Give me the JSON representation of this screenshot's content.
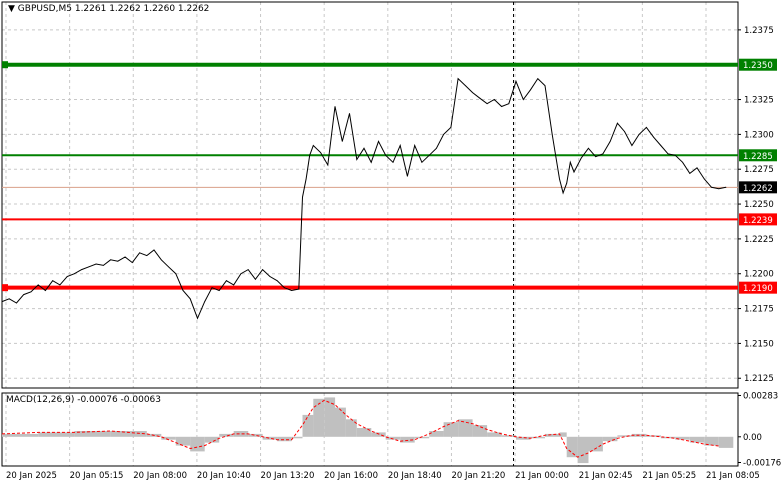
{
  "header": {
    "symbol": "GBPUSD,M5",
    "ohlc": "1.2261 1.2262 1.2260 1.2262"
  },
  "macd_panel": {
    "label": "MACD(12,26,9) -0.00076 -0.00063"
  },
  "colors": {
    "price_line": "#000000",
    "green_level": "#008000",
    "red_level": "#ff0000",
    "current_price_line": "#d9a08a",
    "histogram": "#c0c0c0",
    "signal": "#ff0000",
    "grid": "#c8c8c8"
  },
  "chart_data": [
    {
      "type": "line",
      "name": "price",
      "ylim": [
        1.2118,
        1.2395
      ],
      "yticks": [
        "1.2375",
        "1.2325",
        "1.2300",
        "1.2275",
        "1.2250",
        "1.2225",
        "1.2200",
        "1.2175",
        "1.2150",
        "1.2125"
      ],
      "xticks": [
        "20 Jan 2025",
        "20 Jan 05:15",
        "20 Jan 08:00",
        "20 Jan 10:40",
        "20 Jan 13:20",
        "20 Jan 16:00",
        "20 Jan 18:40",
        "20 Jan 21:20",
        "21 Jan 00:00",
        "21 Jan 02:45",
        "21 Jan 05:25",
        "21 Jan 08:05"
      ],
      "x": [
        0,
        0.01,
        0.02,
        0.03,
        0.04,
        0.05,
        0.06,
        0.07,
        0.08,
        0.09,
        0.1,
        0.11,
        0.12,
        0.13,
        0.14,
        0.15,
        0.16,
        0.17,
        0.18,
        0.19,
        0.2,
        0.21,
        0.22,
        0.23,
        0.24,
        0.25,
        0.26,
        0.27,
        0.28,
        0.29,
        0.3,
        0.31,
        0.32,
        0.33,
        0.34,
        0.35,
        0.36,
        0.37,
        0.38,
        0.39,
        0.4,
        0.41,
        0.415,
        0.42,
        0.425,
        0.43,
        0.44,
        0.45,
        0.46,
        0.47,
        0.48,
        0.49,
        0.5,
        0.51,
        0.52,
        0.53,
        0.54,
        0.55,
        0.56,
        0.57,
        0.58,
        0.59,
        0.6,
        0.61,
        0.62,
        0.63,
        0.64,
        0.65,
        0.66,
        0.67,
        0.68,
        0.69,
        0.7,
        0.71,
        0.72,
        0.73,
        0.74,
        0.75,
        0.76,
        0.77,
        0.775,
        0.78,
        0.785,
        0.79,
        0.8,
        0.81,
        0.82,
        0.83,
        0.84,
        0.85,
        0.86,
        0.87,
        0.88,
        0.89,
        0.9,
        0.91,
        0.92,
        0.93,
        0.94,
        0.95,
        0.96,
        0.97,
        0.98,
        0.99,
        1.0
      ],
      "values": [
        1.218,
        1.2182,
        1.2179,
        1.2185,
        1.2187,
        1.2192,
        1.2188,
        1.2195,
        1.2192,
        1.2198,
        1.22,
        1.2203,
        1.2205,
        1.2207,
        1.2206,
        1.221,
        1.2209,
        1.2212,
        1.2208,
        1.2215,
        1.2213,
        1.2217,
        1.221,
        1.2205,
        1.22,
        1.2188,
        1.2182,
        1.2168,
        1.218,
        1.219,
        1.2188,
        1.2195,
        1.2192,
        1.22,
        1.2203,
        1.2196,
        1.2203,
        1.2198,
        1.2195,
        1.219,
        1.2188,
        1.2189,
        1.2255,
        1.2268,
        1.2285,
        1.2292,
        1.2287,
        1.2278,
        1.232,
        1.2295,
        1.2315,
        1.2282,
        1.229,
        1.228,
        1.2295,
        1.2285,
        1.228,
        1.2292,
        1.227,
        1.2292,
        1.228,
        1.2285,
        1.229,
        1.23,
        1.2305,
        1.234,
        1.2335,
        1.233,
        1.2326,
        1.2322,
        1.2325,
        1.232,
        1.2322,
        1.2338,
        1.2325,
        1.2332,
        1.234,
        1.2335,
        1.23,
        1.2268,
        1.2258,
        1.2265,
        1.228,
        1.2273,
        1.2283,
        1.229,
        1.2284,
        1.2286,
        1.2295,
        1.2308,
        1.2302,
        1.2292,
        1.23,
        1.2305,
        1.2298,
        1.2292,
        1.2286,
        1.2285,
        1.228,
        1.2272,
        1.2276,
        1.2268,
        1.2262,
        1.2261,
        1.2262
      ],
      "levels": [
        {
          "value": 1.235,
          "label": "1.2350",
          "color": "#008000",
          "thick": true
        },
        {
          "value": 1.2285,
          "label": "1.2285",
          "color": "#008000",
          "thick": false
        },
        {
          "value": 1.2239,
          "label": "1.2239",
          "color": "#ff0000",
          "thick": false
        },
        {
          "value": 1.219,
          "label": "1.2190",
          "color": "#ff0000",
          "thick": true
        }
      ],
      "current_price": {
        "value": 1.2262,
        "label": "1.2262"
      },
      "vertical_marker_x": 0.695,
      "grid": true
    },
    {
      "type": "bar",
      "name": "MACD",
      "ylim": [
        -0.002,
        0.003
      ],
      "yticks": [
        "0.00283",
        "0.00",
        "-0.00176"
      ],
      "x": [
        0,
        0.05,
        0.1,
        0.15,
        0.2,
        0.22,
        0.24,
        0.26,
        0.28,
        0.3,
        0.32,
        0.34,
        0.36,
        0.38,
        0.4,
        0.415,
        0.43,
        0.445,
        0.46,
        0.475,
        0.49,
        0.51,
        0.53,
        0.55,
        0.57,
        0.59,
        0.61,
        0.63,
        0.65,
        0.67,
        0.69,
        0.71,
        0.73,
        0.75,
        0.77,
        0.78,
        0.795,
        0.81,
        0.83,
        0.85,
        0.87,
        0.89,
        0.91,
        0.93,
        0.95,
        0.97,
        0.99
      ],
      "values": [
        0.0002,
        0.0003,
        0.0004,
        0.0004,
        0.0002,
        -0.0002,
        -0.0006,
        -0.001,
        -0.0004,
        0.0002,
        0.0004,
        0.0002,
        -0.0002,
        -0.0003,
        -0.0001,
        0.0015,
        0.0026,
        0.0027,
        0.002,
        0.0012,
        0.0006,
        0.0003,
        -0.0002,
        -0.0004,
        -0.0001,
        0.0004,
        0.001,
        0.0012,
        0.0008,
        0.0003,
        0.0001,
        -0.0002,
        -0.0001,
        0.0002,
        0.0003,
        -0.0014,
        -0.0018,
        -0.001,
        -0.0003,
        0.0001,
        0.0002,
        0.0001,
        -0.0001,
        -0.0002,
        -0.0004,
        -0.0006,
        -0.00076
      ],
      "signal": [
        0.0002,
        0.0003,
        0.0003,
        0.0004,
        0.0002,
        0.0,
        -0.0004,
        -0.0008,
        -0.0006,
        -0.0001,
        0.0002,
        0.0002,
        0.0,
        -0.0002,
        -0.0002,
        0.0008,
        0.002,
        0.0025,
        0.0022,
        0.0015,
        0.0009,
        0.0004,
        0.0,
        -0.0003,
        -0.0002,
        0.0002,
        0.0007,
        0.0011,
        0.0009,
        0.0005,
        0.0002,
        0.0,
        -0.0001,
        0.0001,
        0.0002,
        -0.0008,
        -0.0014,
        -0.0011,
        -0.0005,
        -0.0001,
        0.0001,
        0.0001,
        0.0,
        -0.0001,
        -0.0003,
        -0.0005,
        -0.00063
      ],
      "grid": true
    }
  ]
}
